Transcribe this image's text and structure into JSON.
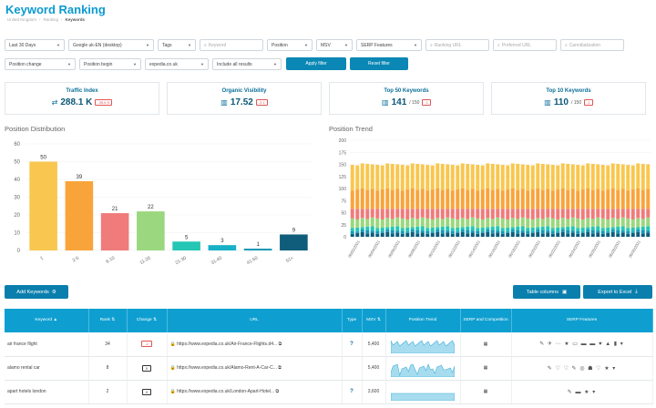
{
  "header": {
    "title": "Keyword Ranking",
    "breadcrumb": [
      "United Kingdom",
      "›",
      "Ranking",
      "›",
      "Keywords"
    ]
  },
  "filters": {
    "row1": [
      {
        "label": "Last 30 Days",
        "type": "select"
      },
      {
        "label": "Google uk-EN (desktop)",
        "type": "select"
      },
      {
        "label": "Tags",
        "type": "select"
      },
      {
        "label": "Keyword",
        "type": "search"
      },
      {
        "label": "Position",
        "type": "select"
      },
      {
        "label": "MSV",
        "type": "select"
      },
      {
        "label": "SERP Features",
        "type": "select"
      },
      {
        "label": "Ranking URL",
        "type": "search"
      },
      {
        "label": "Preferred URL",
        "type": "search"
      },
      {
        "label": "Cannibalization",
        "type": "search"
      }
    ],
    "row2": [
      {
        "label": "Position change",
        "type": "select"
      },
      {
        "label": "Position begin",
        "type": "select"
      },
      {
        "label": "expedia.co.uk",
        "type": "select"
      },
      {
        "label": "Include all results",
        "type": "select"
      }
    ],
    "apply_label": "Apply filter",
    "reset_label": "Reset filter"
  },
  "kpis": [
    {
      "title": "Traffic Index",
      "icon": "swap-arrows-icon",
      "value": "288.1 K",
      "sub": "",
      "badge": "-35.6 K"
    },
    {
      "title": "Organic Visibility",
      "icon": "bar-chart-icon",
      "value": "17.52",
      "sub": "",
      "badge": "-3.1"
    },
    {
      "title": "Top 50 Keywords",
      "icon": "bar-chart-icon",
      "value": "141",
      "sub": "/ 150",
      "badge": "-1"
    },
    {
      "title": "Top 10 Keywords",
      "icon": "bar-chart-icon",
      "value": "110",
      "sub": "/ 150",
      "badge": "-1"
    }
  ],
  "position_distribution": {
    "title": "Position Distribution",
    "chart_data": {
      "type": "bar",
      "categories": [
        "1",
        "2-5",
        "6-10",
        "11-20",
        "21-30",
        "31-40",
        "41-50",
        "51+"
      ],
      "values": [
        50,
        39,
        21,
        22,
        5,
        3,
        1,
        9
      ],
      "colors": [
        "#f9c74f",
        "#f9a43a",
        "#f07b7b",
        "#9ad77e",
        "#25c6b4",
        "#18b0c6",
        "#1597b5",
        "#0f5d7a"
      ],
      "ylim": [
        0,
        60
      ],
      "yticks": [
        0,
        10,
        20,
        30,
        40,
        50,
        60
      ]
    }
  },
  "position_trend": {
    "title": "Position Trend",
    "chart_data": {
      "type": "bar",
      "stacked": true,
      "ylim": [
        0,
        200
      ],
      "yticks": [
        0,
        25,
        50,
        75,
        100,
        125,
        150,
        175,
        200
      ],
      "xticks": [
        "06/02/2021",
        "06/04/2021",
        "06/06/2021",
        "06/08/2021",
        "06/10/2021",
        "06/12/2021",
        "06/14/2021",
        "06/16/2021",
        "06/18/2021",
        "06/20/2021",
        "06/22/2021",
        "06/24/2021",
        "06/26/2021",
        "06/28/2021",
        "06/30/2021"
      ],
      "bar_count": 60,
      "series": [
        {
          "color": "#0f5d7a",
          "values": 8
        },
        {
          "color": "#1597b5",
          "values": 5
        },
        {
          "color": "#25c6b4",
          "values": 7
        },
        {
          "color": "#9ad77e",
          "values": 18
        },
        {
          "color": "#f07b7b",
          "values": 20
        },
        {
          "color": "#f9a43a",
          "values": 40
        },
        {
          "color": "#f9c74f",
          "values": 52
        }
      ]
    }
  },
  "toolbar": {
    "add_keywords": "Add Keywords",
    "table_columns": "Table columns",
    "export": "Export to Excel"
  },
  "table": {
    "columns": [
      "Keyword",
      "Rank",
      "Change",
      "URL",
      "Type",
      "MSV",
      "Position Trend",
      "SERP and Competition",
      "SERP Features"
    ],
    "rows": [
      {
        "keyword": "air france flight",
        "rank": "34",
        "change": "-2",
        "change_kind": "down",
        "url": "https://www.expedia.co.uk/Air-France-Flights.d4...",
        "type": "?",
        "msv": "5,400",
        "features": "✎ ✈ ⋯ ★ ▭ ▬ ▬ ♥ ▲ ▮ ▾"
      },
      {
        "keyword": "alamo rental car",
        "rank": "8",
        "change": "0",
        "change_kind": "neutral",
        "url": "https://www.expedia.co.uk/Alamo-Rent-A-Car-C...",
        "type": "",
        "msv": "5,400",
        "features": "✎ ♡ ♡ ✎ ◎ ☗ ♡ ★ ▾"
      },
      {
        "keyword": "apart hotels london",
        "rank": "2",
        "change": "0",
        "change_kind": "neutral",
        "url": "https://www.expedia.co.uk/London-Apart-Hotel...",
        "type": "?",
        "msv": "3,600",
        "features": "✎ ▬ ★ ▾"
      }
    ]
  }
}
